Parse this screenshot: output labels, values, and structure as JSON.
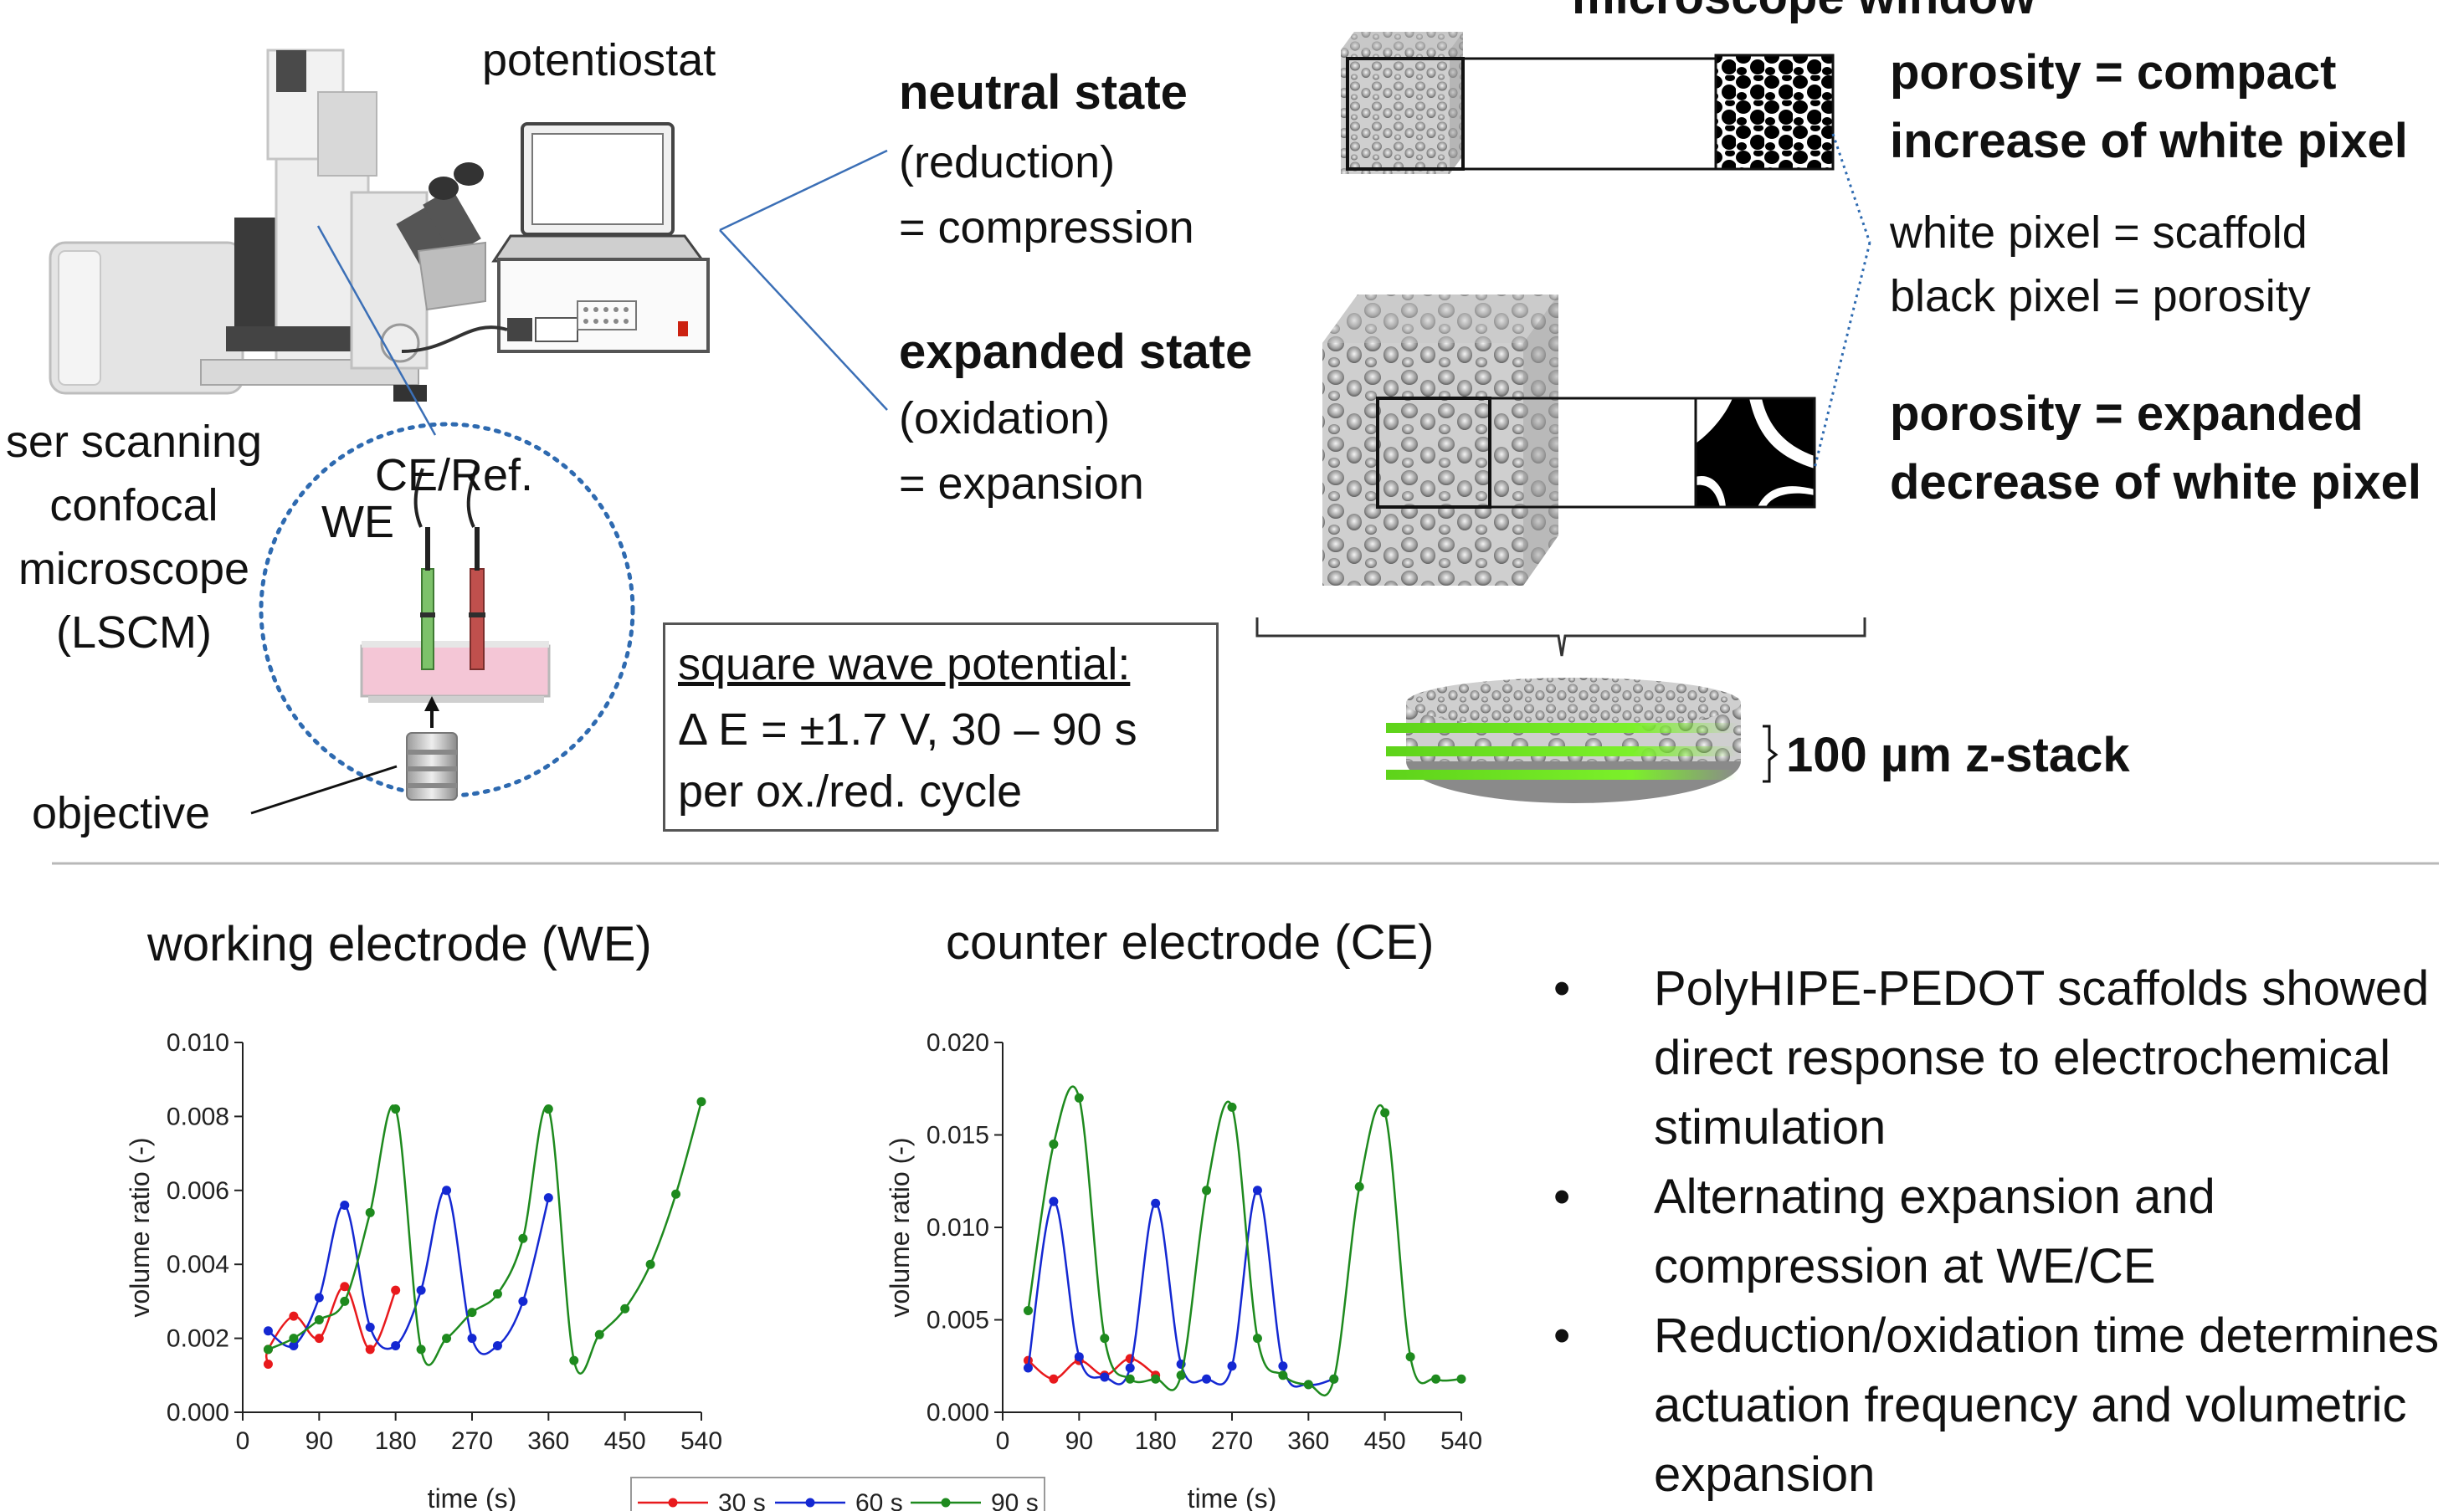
{
  "setup": {
    "potentiostat_label": "potentiostat",
    "microscope_label": [
      "ser scanning",
      "confocal",
      "microscope",
      "(LSCM)"
    ],
    "ce_ref_label": "CE/Ref.",
    "we_label": "WE",
    "objective_label": "objective"
  },
  "states": {
    "neutral_title": "neutral state",
    "neutral_line1": "(reduction)",
    "neutral_line2": "= compression",
    "expanded_title": "expanded state",
    "expanded_line1": "(oxidation)",
    "expanded_line2": "= expansion"
  },
  "microscope_window": {
    "title": "microscope window",
    "compact_line1": "porosity = compact",
    "compact_line2": "increase of white pixel",
    "legend_line1": "white pixel = scaffold",
    "legend_line2": "black pixel = porosity",
    "expanded_line1": "porosity = expanded",
    "expanded_line2": "decrease of white pixel"
  },
  "square_wave": {
    "title": "square wave potential:",
    "line1": "Δ E = ±1.7 V, 30 – 90 s",
    "line2": "per ox./red. cycle"
  },
  "zstack_label": "100 µm z-stack",
  "bullets": [
    "PolyHIPE-PEDOT scaffolds showed direct response to electrochemical stimulation",
    "Alternating expansion and compression at WE/CE",
    "Reduction/oxidation time determines actuation frequency and  volumetric expansion"
  ],
  "bullet_symbol": "•",
  "colors": {
    "30s": "#e8191c",
    "60s": "#1428d2",
    "90s": "#1e8a1e"
  },
  "chart_data": [
    {
      "type": "line",
      "title": "working electrode (WE)",
      "xlabel": "time (s)",
      "ylabel": "volume ratio (-)",
      "xlim": [
        0,
        540
      ],
      "ylim": [
        0,
        0.01
      ],
      "xticks": [
        0,
        90,
        180,
        270,
        360,
        450,
        540
      ],
      "yticks": [
        0.0,
        0.002,
        0.004,
        0.006,
        0.008,
        0.01
      ],
      "ytick_labels": [
        "0.000",
        "0.002",
        "0.004",
        "0.006",
        "0.008",
        "0.010"
      ],
      "series": [
        {
          "name": "30 s",
          "color": "#e8191c",
          "points": [
            [
              30,
              0.0013
            ],
            [
              30,
              0.0017
            ],
            [
              60,
              0.0026
            ],
            [
              90,
              0.002
            ],
            [
              120,
              0.0034
            ],
            [
              150,
              0.0017
            ],
            [
              180,
              0.0033
            ]
          ]
        },
        {
          "name": "60 s",
          "color": "#1428d2",
          "points": [
            [
              30,
              0.0022
            ],
            [
              60,
              0.0018
            ],
            [
              90,
              0.0031
            ],
            [
              120,
              0.0056
            ],
            [
              150,
              0.0023
            ],
            [
              180,
              0.0018
            ],
            [
              210,
              0.0033
            ],
            [
              240,
              0.006
            ],
            [
              270,
              0.002
            ],
            [
              300,
              0.0018
            ],
            [
              330,
              0.003
            ],
            [
              360,
              0.0058
            ]
          ]
        },
        {
          "name": "90 s",
          "color": "#1e8a1e",
          "points": [
            [
              30,
              0.0017
            ],
            [
              60,
              0.002
            ],
            [
              90,
              0.0025
            ],
            [
              120,
              0.003
            ],
            [
              150,
              0.0054
            ],
            [
              180,
              0.0082
            ],
            [
              210,
              0.0017
            ],
            [
              240,
              0.002
            ],
            [
              270,
              0.0027
            ],
            [
              300,
              0.0032
            ],
            [
              330,
              0.0047
            ],
            [
              360,
              0.0082
            ],
            [
              390,
              0.0014
            ],
            [
              420,
              0.0021
            ],
            [
              450,
              0.0028
            ],
            [
              480,
              0.004
            ],
            [
              510,
              0.0059
            ],
            [
              540,
              0.0084
            ]
          ]
        }
      ]
    },
    {
      "type": "line",
      "title": "counter electrode (CE)",
      "xlabel": "time (s)",
      "ylabel": "volume ratio (-)",
      "xlim": [
        0,
        540
      ],
      "ylim": [
        0,
        0.02
      ],
      "xticks": [
        0,
        90,
        180,
        270,
        360,
        450,
        540
      ],
      "yticks": [
        0.0,
        0.005,
        0.01,
        0.015,
        0.02
      ],
      "ytick_labels": [
        "0.000",
        "0.005",
        "0.010",
        "0.015",
        "0.020"
      ],
      "series": [
        {
          "name": "30 s",
          "color": "#e8191c",
          "points": [
            [
              30,
              0.0028
            ],
            [
              60,
              0.0018
            ],
            [
              90,
              0.0028
            ],
            [
              120,
              0.002
            ],
            [
              150,
              0.0029
            ],
            [
              180,
              0.002
            ]
          ]
        },
        {
          "name": "60 s",
          "color": "#1428d2",
          "points": [
            [
              30,
              0.0024
            ],
            [
              60,
              0.0114
            ],
            [
              90,
              0.003
            ],
            [
              120,
              0.0019
            ],
            [
              150,
              0.0024
            ],
            [
              180,
              0.0113
            ],
            [
              210,
              0.0026
            ],
            [
              240,
              0.0018
            ],
            [
              270,
              0.0025
            ],
            [
              300,
              0.012
            ],
            [
              330,
              0.0025
            ],
            [
              360,
              0.0015
            ],
            [
              390,
              0.0018
            ]
          ]
        },
        {
          "name": "90 s",
          "color": "#1e8a1e",
          "points": [
            [
              30,
              0.0055
            ],
            [
              60,
              0.0145
            ],
            [
              90,
              0.017
            ],
            [
              120,
              0.004
            ],
            [
              150,
              0.0018
            ],
            [
              180,
              0.0018
            ],
            [
              210,
              0.002
            ],
            [
              240,
              0.012
            ],
            [
              270,
              0.0165
            ],
            [
              300,
              0.004
            ],
            [
              330,
              0.002
            ],
            [
              360,
              0.0015
            ],
            [
              390,
              0.0018
            ],
            [
              420,
              0.0122
            ],
            [
              450,
              0.0162
            ],
            [
              480,
              0.003
            ],
            [
              510,
              0.0018
            ],
            [
              540,
              0.0018
            ]
          ]
        }
      ]
    }
  ],
  "legend": {
    "entries": [
      "30 s",
      "60 s",
      "90 s"
    ]
  }
}
